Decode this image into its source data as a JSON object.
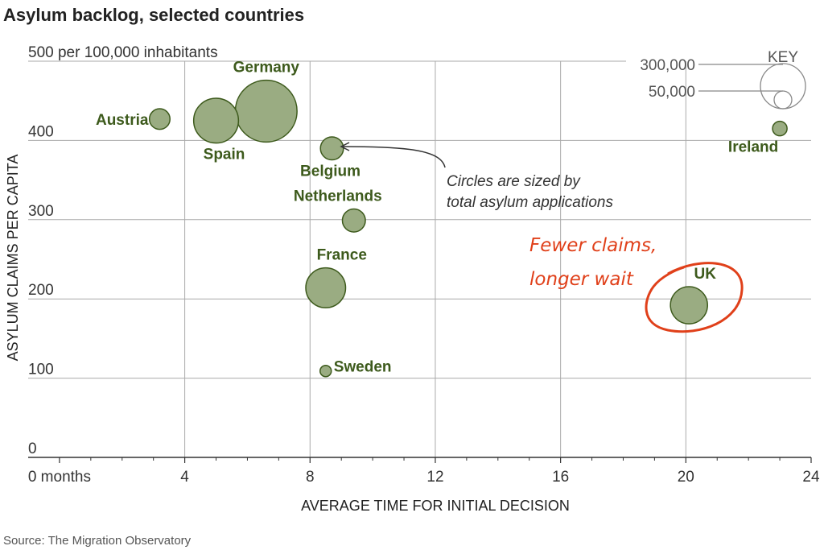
{
  "title": "Asylum backlog, selected countries",
  "source": "Source: The Migration Observatory",
  "annotations": {
    "note_line1": "Circles are sized by",
    "note_line2": "total asylum applications",
    "callout_line1": "Fewer claims,",
    "callout_line2": "longer wait"
  },
  "key": {
    "title": "KEY",
    "entries": [
      {
        "label": "300,000",
        "value": 300000
      },
      {
        "label": "50,000",
        "value": 50000
      }
    ]
  },
  "colors": {
    "bubble_fill": "#9aac82",
    "bubble_stroke": "#3d5a1c",
    "label": "#3d5a1c",
    "grid": "#aaaaaa",
    "callout": "#e0401a"
  },
  "chart_data": {
    "type": "scatter",
    "title": "Asylum backlog, selected countries",
    "xlabel": "AVERAGE TIME FOR INITIAL DECISION",
    "ylabel": "ASYLUM CLAIMS PER CAPITA",
    "xlim": [
      -1,
      24
    ],
    "ylim": [
      0,
      500
    ],
    "x_ticks": [
      {
        "value": 0,
        "label": "0 months"
      },
      {
        "value": 4,
        "label": "4"
      },
      {
        "value": 8,
        "label": "8"
      },
      {
        "value": 12,
        "label": "12"
      },
      {
        "value": 16,
        "label": "16"
      },
      {
        "value": 20,
        "label": "20"
      },
      {
        "value": 24,
        "label": "24"
      }
    ],
    "y_ticks": [
      {
        "value": 0,
        "label": "0"
      },
      {
        "value": 100,
        "label": "100"
      },
      {
        "value": 200,
        "label": "200"
      },
      {
        "value": 300,
        "label": "300"
      },
      {
        "value": 400,
        "label": "400"
      },
      {
        "value": 500,
        "label": "500 per 100,000 inhabitants"
      }
    ],
    "grid": true,
    "size_encoding": "total asylum applications",
    "points": [
      {
        "name": "Austria",
        "x": 3.2,
        "y": 427,
        "size": 40000
      },
      {
        "name": "Germany",
        "x": 6.6,
        "y": 437,
        "size": 360000
      },
      {
        "name": "Spain",
        "x": 5.0,
        "y": 425,
        "size": 190000
      },
      {
        "name": "Belgium",
        "x": 8.7,
        "y": 390,
        "size": 50000
      },
      {
        "name": "Netherlands",
        "x": 9.4,
        "y": 299,
        "size": 50000
      },
      {
        "name": "France",
        "x": 8.5,
        "y": 214,
        "size": 150000
      },
      {
        "name": "Sweden",
        "x": 8.5,
        "y": 109,
        "size": 12000
      },
      {
        "name": "UK",
        "x": 20.1,
        "y": 192,
        "size": 130000
      },
      {
        "name": "Ireland",
        "x": 23.0,
        "y": 415,
        "size": 20000
      }
    ]
  }
}
